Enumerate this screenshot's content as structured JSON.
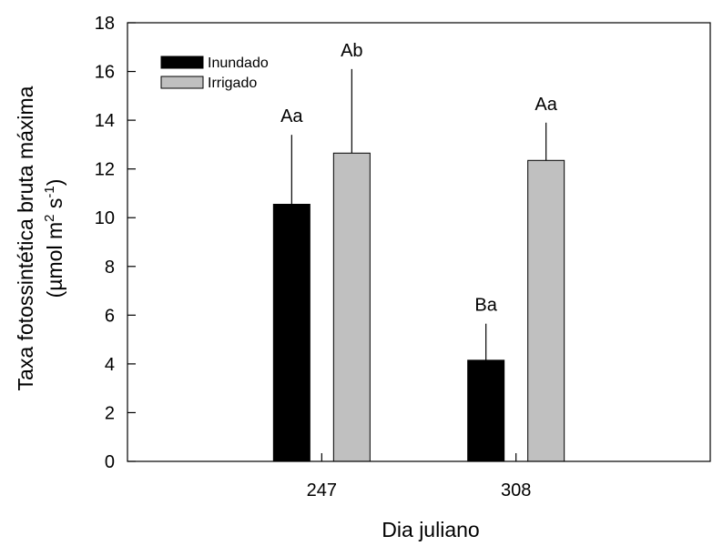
{
  "chart_data": {
    "type": "bar",
    "categories": [
      "247",
      "308"
    ],
    "series": [
      {
        "name": "Inundado",
        "color": "#000000",
        "values": [
          10.55,
          4.15
        ],
        "error": [
          2.85,
          1.5
        ],
        "labels": [
          "Aa",
          "Ba"
        ]
      },
      {
        "name": "Irrigado",
        "color": "#c0c0c0",
        "values": [
          12.65,
          12.35
        ],
        "error": [
          3.45,
          1.55
        ],
        "labels": [
          "Ab",
          "Aa"
        ]
      }
    ],
    "title": "",
    "xlabel": "Dia juliano",
    "ylabel": {
      "line1": "Taxa fotossintética bruta máxima",
      "line2_prefix": "(µmol m",
      "line2_sup1": "2",
      "line2_mid": " s",
      "line2_sup2": "-1",
      "line2_suffix": ")"
    },
    "ylim": [
      0,
      18
    ],
    "yticks": [
      0,
      2,
      4,
      6,
      8,
      10,
      12,
      14,
      16,
      18
    ],
    "grid": false,
    "legend_position": "top-left"
  }
}
